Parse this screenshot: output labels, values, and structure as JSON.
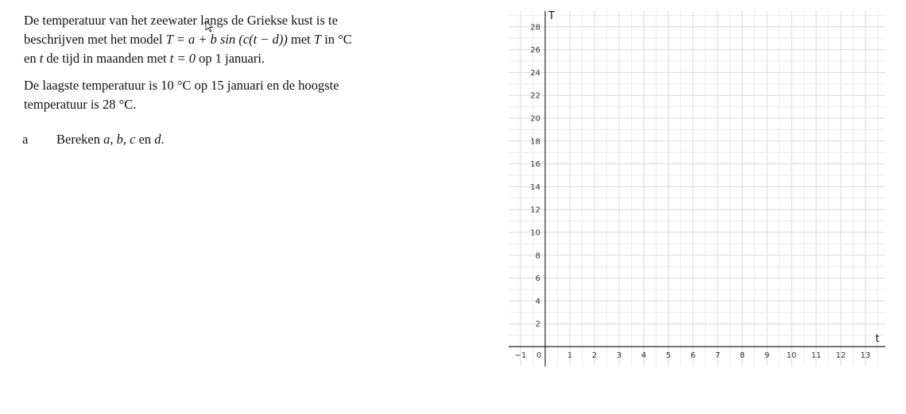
{
  "problem": {
    "line1": "De temperatuur van het zeewater langs de Griekse kust is te",
    "line2_pre": "beschrijven met het model ",
    "formula": "T = a + b sin (c(t − d))",
    "line2_post": " met ",
    "T_var": "T",
    "line2_end": " in °C",
    "line3_pre": "en ",
    "t_var": "t",
    "line3_mid": " de tijd in maanden met ",
    "t_eq": "t = 0",
    "line3_end": " op 1 januari.",
    "line4": "De laagste temperatuur is 10 °C op 15 januari en de hoogste",
    "line5": "temperatuur is 28 °C."
  },
  "question_a": {
    "label": "a",
    "text_pre": "Bereken ",
    "vars": "a, b, c",
    "text_mid": " en ",
    "var_d": "d",
    "text_end": "."
  },
  "chart_data": {
    "type": "line",
    "series": [],
    "xlabel": "t",
    "ylabel": "T",
    "xlim": [
      -1,
      13
    ],
    "ylim": [
      0,
      28
    ],
    "x_ticks": [
      -1,
      0,
      1,
      2,
      3,
      4,
      5,
      6,
      7,
      8,
      9,
      10,
      11,
      12,
      13
    ],
    "y_ticks": [
      2,
      4,
      6,
      8,
      10,
      12,
      14,
      16,
      18,
      20,
      22,
      24,
      26,
      28
    ],
    "grid": true
  }
}
